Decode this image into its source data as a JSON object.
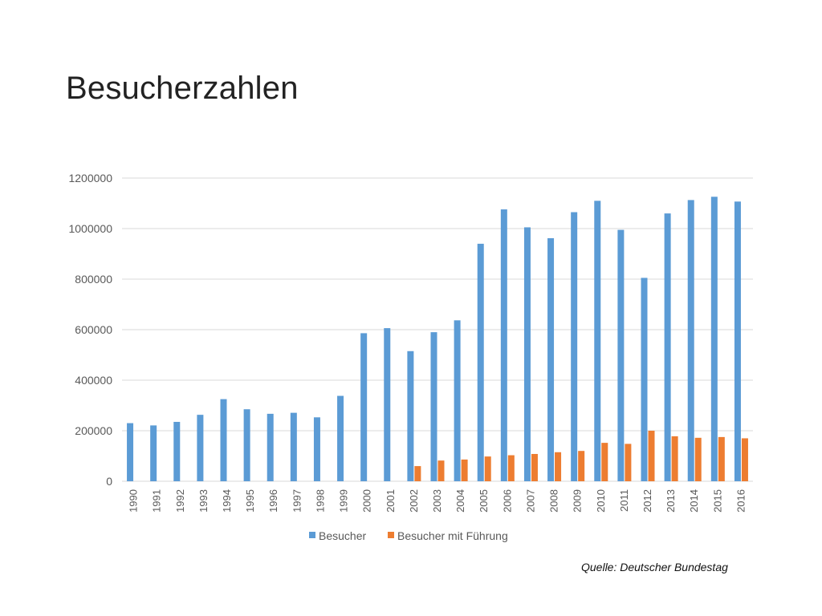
{
  "slide": {
    "title": "Besucherzahlen",
    "source": "Quelle: Deutscher Bundestag"
  },
  "colors": {
    "besucher": "#5B9BD5",
    "fuehrung": "#ED7D31",
    "grid": "#D9D9D9",
    "text": "#595959"
  },
  "chart_data": {
    "type": "bar",
    "title": "",
    "xlabel": "",
    "ylabel": "",
    "ylim": [
      0,
      1200000
    ],
    "yticks": [
      "0",
      "200000",
      "400000",
      "600000",
      "800000",
      "1000000",
      "1200000"
    ],
    "grid": true,
    "legend": "bottom",
    "categories": [
      "1990",
      "1991",
      "1992",
      "1993",
      "1994",
      "1995",
      "1996",
      "1997",
      "1998",
      "1999",
      "2000",
      "2001",
      "2002",
      "2003",
      "2004",
      "2005",
      "2006",
      "2007",
      "2008",
      "2009",
      "2010",
      "2011",
      "2012",
      "2013",
      "2014",
      "2015",
      "2016"
    ],
    "series": [
      {
        "name": "Besucher",
        "values": [
          230000,
          221000,
          235000,
          263000,
          325000,
          285000,
          267000,
          271000,
          253000,
          338000,
          586000,
          606000,
          515000,
          590000,
          637000,
          940000,
          1076000,
          1005000,
          962000,
          1065000,
          1110000,
          995000,
          805000,
          1060000,
          1113000,
          1126000,
          1107000
        ]
      },
      {
        "name": "Besucher mit Führung",
        "values": [
          null,
          null,
          null,
          null,
          null,
          null,
          null,
          null,
          null,
          null,
          null,
          null,
          60000,
          82000,
          86000,
          98000,
          103000,
          108000,
          115000,
          120000,
          152000,
          148000,
          200000,
          178000,
          172000,
          175000,
          170000
        ]
      }
    ]
  }
}
